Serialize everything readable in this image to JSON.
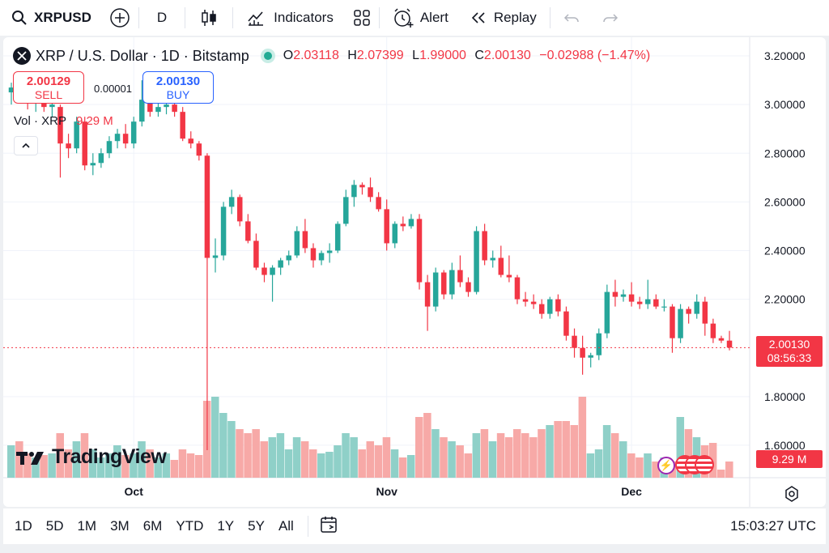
{
  "topbar": {
    "symbol": "XRPUSD",
    "interval": "D",
    "indicators_label": "Indicators",
    "alert_label": "Alert",
    "replay_label": "Replay"
  },
  "legend": {
    "title": "XRP / U.S. Dollar · 1D · Bitstamp",
    "o_label": "O",
    "o_value": "2.03118",
    "h_label": "H",
    "h_value": "2.07399",
    "l_label": "L",
    "l_value": "1.99000",
    "c_label": "C",
    "c_value": "2.00130",
    "change": "−0.02988 (−1.47%)"
  },
  "trade": {
    "sell_price": "2.00129",
    "sell_label": "SELL",
    "spread": "0.00001",
    "buy_price": "2.00130",
    "buy_label": "BUY"
  },
  "volume_legend": {
    "label": "Vol · XRP",
    "value": "9.29 M"
  },
  "price_tag": {
    "price": "2.00130",
    "countdown": "08:56:33"
  },
  "volume_tag": "9.29 M",
  "watermark": "TradingView",
  "bottombar": {
    "timeframes": [
      "1D",
      "5D",
      "1M",
      "3M",
      "6M",
      "YTD",
      "1Y",
      "5Y",
      "All"
    ],
    "time": "15:03:27 UTC"
  },
  "colors": {
    "up": "#26a69a",
    "down": "#f23645",
    "vol_up": "#8fd0c8",
    "vol_down": "#f7a9a7"
  },
  "chart_data": {
    "type": "candlestick",
    "title": "XRP / U.S. Dollar · 1D · Bitstamp",
    "y_ticks": [
      "3.20000",
      "3.00000",
      "2.80000",
      "2.60000",
      "2.40000",
      "2.20000",
      "1.80000",
      "1.60000"
    ],
    "ylim": [
      1.48,
      3.25
    ],
    "x_ticks": [
      {
        "label": "Oct",
        "index": 15
      },
      {
        "label": "Nov",
        "index": 46
      },
      {
        "label": "Dec",
        "index": 76
      }
    ],
    "last_close": 2.0013,
    "candles": [
      [
        3.05,
        3.09,
        3.0,
        3.07,
        0.4
      ],
      [
        3.07,
        3.09,
        3.02,
        3.06,
        0.45
      ],
      [
        3.05,
        3.08,
        2.98,
        3.01,
        0.3
      ],
      [
        3.01,
        3.06,
        2.97,
        3.03,
        0.25
      ],
      [
        3.03,
        3.05,
        2.97,
        2.99,
        0.28
      ],
      [
        2.99,
        3.02,
        2.95,
        3.0,
        0.3
      ],
      [
        2.99,
        3.0,
        2.7,
        2.84,
        0.55
      ],
      [
        2.84,
        2.88,
        2.78,
        2.82,
        0.35
      ],
      [
        2.82,
        2.95,
        2.8,
        2.93,
        0.45
      ],
      [
        2.93,
        2.95,
        2.73,
        2.75,
        0.55
      ],
      [
        2.75,
        2.8,
        2.71,
        2.76,
        0.35
      ],
      [
        2.76,
        2.82,
        2.74,
        2.8,
        0.25
      ],
      [
        2.8,
        2.87,
        2.78,
        2.85,
        0.3
      ],
      [
        2.85,
        2.9,
        2.82,
        2.88,
        0.4
      ],
      [
        2.88,
        2.92,
        2.82,
        2.84,
        0.28
      ],
      [
        2.84,
        2.95,
        2.82,
        2.93,
        0.3
      ],
      [
        2.93,
        3.1,
        2.91,
        3.02,
        0.45
      ],
      [
        3.02,
        3.05,
        2.95,
        2.97,
        0.35
      ],
      [
        2.97,
        3.02,
        2.95,
        2.99,
        0.25
      ],
      [
        2.99,
        3.03,
        2.96,
        3.0,
        0.3
      ],
      [
        3.0,
        3.02,
        2.95,
        2.97,
        0.22
      ],
      [
        2.97,
        2.99,
        2.85,
        2.86,
        0.35
      ],
      [
        2.86,
        2.89,
        2.82,
        2.84,
        0.3
      ],
      [
        2.84,
        2.85,
        2.77,
        2.79,
        0.28
      ],
      [
        2.79,
        2.8,
        1.58,
        2.37,
        0.95
      ],
      [
        2.37,
        2.45,
        2.31,
        2.38,
        1.0
      ],
      [
        2.38,
        2.6,
        2.36,
        2.58,
        0.8
      ],
      [
        2.58,
        2.65,
        2.55,
        2.62,
        0.7
      ],
      [
        2.62,
        2.63,
        2.5,
        2.52,
        0.6
      ],
      [
        2.52,
        2.55,
        2.43,
        2.44,
        0.55
      ],
      [
        2.44,
        2.47,
        2.32,
        2.33,
        0.6
      ],
      [
        2.33,
        2.35,
        2.27,
        2.3,
        0.45
      ],
      [
        2.3,
        2.34,
        2.19,
        2.33,
        0.5
      ],
      [
        2.33,
        2.37,
        2.3,
        2.36,
        0.55
      ],
      [
        2.36,
        2.4,
        2.34,
        2.38,
        0.35
      ],
      [
        2.38,
        2.5,
        2.37,
        2.48,
        0.5
      ],
      [
        2.48,
        2.53,
        2.39,
        2.41,
        0.45
      ],
      [
        2.41,
        2.43,
        2.33,
        2.36,
        0.35
      ],
      [
        2.36,
        2.4,
        2.34,
        2.39,
        0.3
      ],
      [
        2.39,
        2.43,
        2.35,
        2.4,
        0.32
      ],
      [
        2.4,
        2.52,
        2.39,
        2.51,
        0.4
      ],
      [
        2.51,
        2.65,
        2.5,
        2.62,
        0.55
      ],
      [
        2.62,
        2.69,
        2.58,
        2.67,
        0.5
      ],
      [
        2.67,
        2.68,
        2.63,
        2.66,
        0.35
      ],
      [
        2.66,
        2.7,
        2.6,
        2.62,
        0.45
      ],
      [
        2.62,
        2.64,
        2.56,
        2.57,
        0.4
      ],
      [
        2.57,
        2.61,
        2.4,
        2.43,
        0.5
      ],
      [
        2.43,
        2.52,
        2.41,
        2.51,
        0.35
      ],
      [
        2.51,
        2.54,
        2.48,
        2.5,
        0.25
      ],
      [
        2.5,
        2.55,
        2.49,
        2.53,
        0.28
      ],
      [
        2.53,
        2.55,
        2.24,
        2.27,
        0.75
      ],
      [
        2.27,
        2.3,
        2.07,
        2.17,
        0.8
      ],
      [
        2.17,
        2.33,
        2.15,
        2.31,
        0.6
      ],
      [
        2.31,
        2.32,
        2.2,
        2.22,
        0.5
      ],
      [
        2.22,
        2.35,
        2.2,
        2.32,
        0.45
      ],
      [
        2.32,
        2.38,
        2.25,
        2.27,
        0.4
      ],
      [
        2.27,
        2.29,
        2.21,
        2.23,
        0.3
      ],
      [
        2.23,
        2.5,
        2.22,
        2.48,
        0.55
      ],
      [
        2.48,
        2.51,
        2.34,
        2.36,
        0.6
      ],
      [
        2.36,
        2.4,
        2.33,
        2.37,
        0.45
      ],
      [
        2.37,
        2.42,
        2.29,
        2.3,
        0.55
      ],
      [
        2.3,
        2.38,
        2.27,
        2.29,
        0.5
      ],
      [
        2.29,
        2.3,
        2.18,
        2.2,
        0.6
      ],
      [
        2.2,
        2.23,
        2.17,
        2.19,
        0.55
      ],
      [
        2.19,
        2.22,
        2.16,
        2.18,
        0.5
      ],
      [
        2.18,
        2.2,
        2.12,
        2.14,
        0.6
      ],
      [
        2.14,
        2.21,
        2.12,
        2.2,
        0.65
      ],
      [
        2.2,
        2.22,
        2.13,
        2.15,
        0.7
      ],
      [
        2.15,
        2.17,
        2.03,
        2.05,
        0.7
      ],
      [
        2.05,
        2.08,
        1.96,
        2.0,
        0.65
      ],
      [
        2.0,
        2.05,
        1.89,
        1.96,
        1.0
      ],
      [
        1.96,
        1.98,
        1.92,
        1.97,
        0.3
      ],
      [
        1.97,
        2.08,
        1.95,
        2.06,
        0.35
      ],
      [
        2.06,
        2.26,
        2.04,
        2.23,
        0.65
      ],
      [
        2.23,
        2.28,
        2.17,
        2.21,
        0.55
      ],
      [
        2.21,
        2.24,
        2.19,
        2.22,
        0.45
      ],
      [
        2.22,
        2.27,
        2.17,
        2.19,
        0.3
      ],
      [
        2.19,
        2.21,
        2.16,
        2.18,
        0.25
      ],
      [
        2.18,
        2.28,
        2.16,
        2.2,
        0.3
      ],
      [
        2.2,
        2.22,
        2.16,
        2.17,
        0.2
      ],
      [
        2.17,
        2.2,
        2.15,
        2.17,
        0.25
      ],
      [
        2.17,
        2.18,
        1.98,
        2.04,
        0.2
      ],
      [
        2.04,
        2.18,
        2.02,
        2.16,
        0.75
      ],
      [
        2.16,
        2.17,
        2.1,
        2.14,
        0.6
      ],
      [
        2.14,
        2.22,
        2.12,
        2.19,
        0.5
      ],
      [
        2.19,
        2.21,
        2.05,
        2.1,
        0.4
      ],
      [
        2.1,
        2.12,
        2.02,
        2.04,
        0.43
      ],
      [
        2.04,
        2.05,
        2.02,
        2.03,
        0.1
      ],
      [
        2.03,
        2.07,
        1.99,
        2.0013,
        0.2
      ]
    ]
  }
}
